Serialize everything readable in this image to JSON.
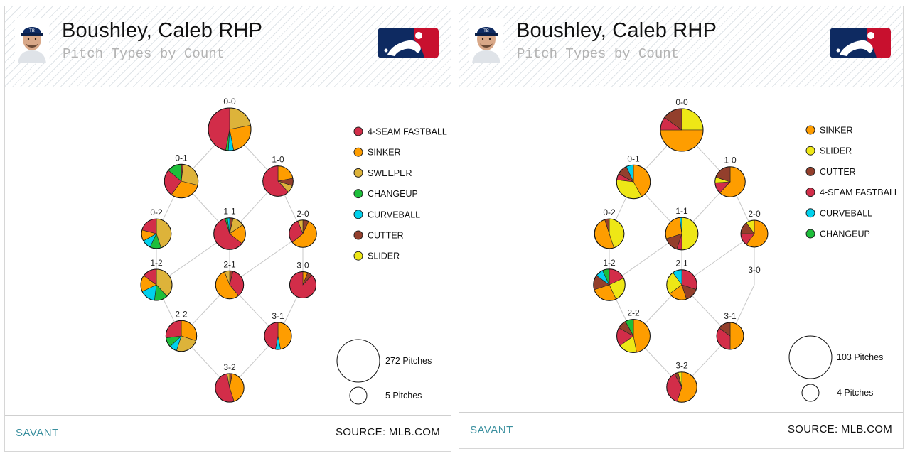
{
  "panels": [
    {
      "player_name": "Boushley, Caleb RHP",
      "subtitle": "Pitch Types by Count",
      "brand": "SAVANT",
      "source": "SOURCE: MLB.COM",
      "team_cap_text": "TB",
      "colors": {
        "header_stripe": "#dfe4e8",
        "savant": "#3a8f9e",
        "mlb_blue": "#0e2a61",
        "mlb_red": "#c8102e"
      },
      "chart_data": {
        "type": "pie",
        "layout": "count-tree",
        "pitch_types": [
          {
            "name": "4-SEAM FASTBALL",
            "color": "#d22d49"
          },
          {
            "name": "SINKER",
            "color": "#fe9d00"
          },
          {
            "name": "SWEEPER",
            "color": "#ddb33a"
          },
          {
            "name": "CHANGEUP",
            "color": "#1dbe3a"
          },
          {
            "name": "CURVEBALL",
            "color": "#00d1ed"
          },
          {
            "name": "CUTTER",
            "color": "#933f2c"
          },
          {
            "name": "SLIDER",
            "color": "#eee716"
          }
        ],
        "size_legend": [
          {
            "pitches": 272,
            "label": "272 Pitches"
          },
          {
            "pitches": 5,
            "label": "5 Pitches"
          }
        ],
        "counts": [
          {
            "count": "0-0",
            "total": 272,
            "mix": {
              "SWEEPER": 0.22,
              "SINKER": 0.25,
              "CURVEBALL": 0.04,
              "CHANGEUP": 0.02,
              "4-SEAM FASTBALL": 0.47
            }
          },
          {
            "count": "0-1",
            "total": 115,
            "mix": {
              "CUTTER": 0.02,
              "SWEEPER": 0.27,
              "SINKER": 0.31,
              "4-SEAM FASTBALL": 0.26,
              "CHANGEUP": 0.14
            }
          },
          {
            "count": "1-0",
            "total": 73,
            "mix": {
              "SINKER": 0.22,
              "CUTTER": 0.08,
              "SWEEPER": 0.08,
              "4-SEAM FASTBALL": 0.62
            }
          },
          {
            "count": "0-2",
            "total": 66,
            "mix": {
              "SWEEPER": 0.45,
              "CHANGEUP": 0.12,
              "CURVEBALL": 0.1,
              "SINKER": 0.12,
              "4-SEAM FASTBALL": 0.21
            }
          },
          {
            "count": "1-1",
            "total": 89,
            "mix": {
              "CUTTER": 0.03,
              "SWEEPER": 0.1,
              "SINKER": 0.17,
              "4-SEAM FASTBALL": 0.5,
              "CHANGEUP": 0.02,
              "CURVEBALL": 0.02
            }
          },
          {
            "count": "2-0",
            "total": 44,
            "mix": {
              "CUTTER": 0.07,
              "SINKER": 0.57,
              "4-SEAM FASTBALL": 0.3,
              "SWEEPER": 0.06
            }
          },
          {
            "count": "1-2",
            "total": 84,
            "mix": {
              "SWEEPER": 0.38,
              "CHANGEUP": 0.14,
              "CURVEBALL": 0.16,
              "SINKER": 0.17,
              "4-SEAM FASTBALL": 0.15
            }
          },
          {
            "count": "2-1",
            "total": 50,
            "mix": {
              "CUTTER": 0.04,
              "4-SEAM FASTBALL": 0.35,
              "SINKER": 0.55,
              "SWEEPER": 0.06
            }
          },
          {
            "count": "3-0",
            "total": 36,
            "mix": {
              "SINKER": 0.06,
              "CUTTER": 0.06,
              "4-SEAM FASTBALL": 0.88
            }
          },
          {
            "count": "2-2",
            "total": 79,
            "mix": {
              "SINKER": 0.3,
              "SWEEPER": 0.25,
              "CURVEBALL": 0.08,
              "CHANGEUP": 0.1,
              "4-SEAM FASTBALL": 0.27
            }
          },
          {
            "count": "3-1",
            "total": 42,
            "mix": {
              "SINKER": 0.47,
              "CURVEBALL": 0.06,
              "4-SEAM FASTBALL": 0.47
            }
          },
          {
            "count": "3-2",
            "total": 56,
            "mix": {
              "CUTTER": 0.03,
              "SINKER": 0.42,
              "4-SEAM FASTBALL": 0.52,
              "SWEEPER": 0.03
            }
          }
        ]
      }
    },
    {
      "player_name": "Boushley, Caleb RHP",
      "subtitle": "Pitch Types by Count",
      "brand": "SAVANT",
      "source": "SOURCE: MLB.COM",
      "team_cap_text": "TB",
      "colors": {
        "header_stripe": "#dfe4e8",
        "savant": "#3a8f9e",
        "mlb_blue": "#0e2a61",
        "mlb_red": "#c8102e"
      },
      "chart_data": {
        "type": "pie",
        "layout": "count-tree",
        "pitch_types": [
          {
            "name": "SINKER",
            "color": "#fe9d00"
          },
          {
            "name": "SLIDER",
            "color": "#eee716"
          },
          {
            "name": "CUTTER",
            "color": "#933f2c"
          },
          {
            "name": "4-SEAM FASTBALL",
            "color": "#d22d49"
          },
          {
            "name": "CURVEBALL",
            "color": "#00d1ed"
          },
          {
            "name": "CHANGEUP",
            "color": "#1dbe3a"
          }
        ],
        "size_legend": [
          {
            "pitches": 103,
            "label": "103 Pitches"
          },
          {
            "pitches": 4,
            "label": "4 Pitches"
          }
        ],
        "counts": [
          {
            "count": "0-0",
            "total": 103,
            "mix": {
              "SLIDER": 0.25,
              "SINKER": 0.5,
              "4-SEAM FASTBALL": 0.1,
              "CUTTER": 0.15
            }
          },
          {
            "count": "0-1",
            "total": 46,
            "mix": {
              "SINKER": 0.42,
              "SLIDER": 0.35,
              "4-SEAM FASTBALL": 0.06,
              "CUTTER": 0.1,
              "CURVEBALL": 0.07
            }
          },
          {
            "count": "1-0",
            "total": 30,
            "mix": {
              "SINKER": 0.62,
              "4-SEAM FASTBALL": 0.12,
              "SLIDER": 0.06,
              "CUTTER": 0.2
            }
          },
          {
            "count": "0-2",
            "total": 28,
            "mix": {
              "SLIDER": 0.45,
              "SINKER": 0.5,
              "CUTTER": 0.05
            }
          },
          {
            "count": "1-1",
            "total": 40,
            "mix": {
              "SLIDER": 0.5,
              "4-SEAM FASTBALL": 0.05,
              "CUTTER": 0.15,
              "SINKER": 0.28,
              "CURVEBALL": 0.02
            }
          },
          {
            "count": "2-0",
            "total": 18,
            "mix": {
              "SINKER": 0.6,
              "4-SEAM FASTBALL": 0.15,
              "CUTTER": 0.15,
              "SLIDER": 0.1
            }
          },
          {
            "count": "1-2",
            "total": 36,
            "mix": {
              "4-SEAM FASTBALL": 0.18,
              "SLIDER": 0.25,
              "SINKER": 0.27,
              "CUTTER": 0.15,
              "CURVEBALL": 0.08,
              "CHANGEUP": 0.07
            }
          },
          {
            "count": "2-1",
            "total": 30,
            "mix": {
              "4-SEAM FASTBALL": 0.3,
              "CUTTER": 0.15,
              "SINKER": 0.2,
              "SLIDER": 0.25,
              "CURVEBALL": 0.1
            }
          },
          {
            "count": "2-2",
            "total": 44,
            "mix": {
              "SINKER": 0.47,
              "SLIDER": 0.18,
              "4-SEAM FASTBALL": 0.18,
              "CUTTER": 0.09,
              "CHANGEUP": 0.08
            }
          },
          {
            "count": "3-1",
            "total": 18,
            "mix": {
              "SINKER": 0.5,
              "4-SEAM FASTBALL": 0.35,
              "CUTTER": 0.15
            }
          },
          {
            "count": "3-2",
            "total": 30,
            "mix": {
              "SINKER": 0.55,
              "4-SEAM FASTBALL": 0.37,
              "CUTTER": 0.04,
              "SLIDER": 0.04
            }
          }
        ]
      }
    }
  ]
}
